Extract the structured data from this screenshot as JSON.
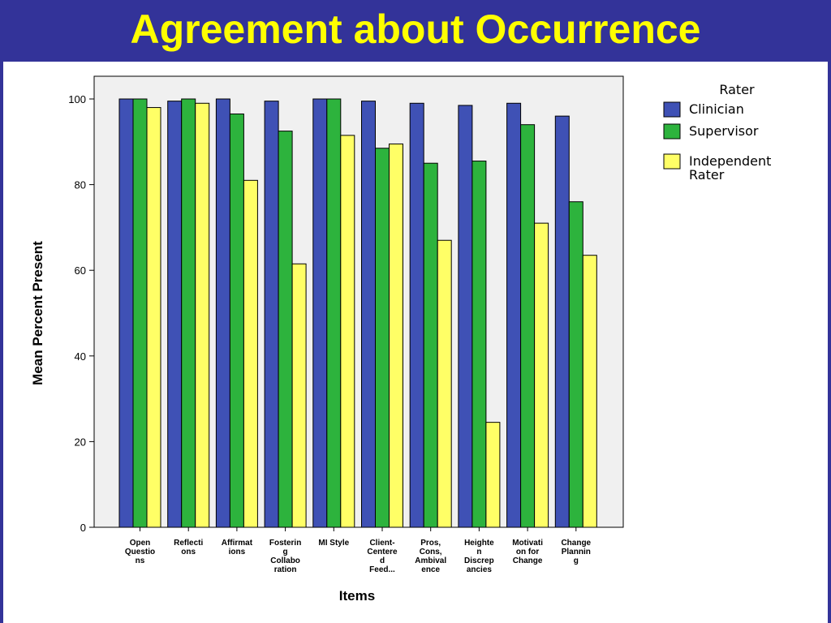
{
  "page": {
    "title": "Agreement about Occurrence"
  },
  "chart_data": {
    "type": "bar",
    "title": "",
    "xlabel": "Items",
    "ylabel": "Mean Percent Present",
    "ylim": [
      0,
      105
    ],
    "yticks": [
      0,
      20,
      40,
      60,
      80,
      100
    ],
    "grid": false,
    "legend": {
      "title": "Rater",
      "placement": "right"
    },
    "categories": [
      [
        "Open",
        "Questio",
        "ns"
      ],
      [
        "Reflecti",
        "ons"
      ],
      [
        "Affirmat",
        "ions"
      ],
      [
        "Fosterin",
        "g",
        "Collabo",
        "ration"
      ],
      [
        "MI Style"
      ],
      [
        "Client-",
        "Centere",
        "d",
        "Feed..."
      ],
      [
        "Pros,",
        "Cons,",
        "Ambival",
        "ence"
      ],
      [
        "Heighte",
        "n",
        "Discrep",
        "ancies"
      ],
      [
        "Motivati",
        "on for",
        "Change"
      ],
      [
        "Change",
        "Plannin",
        "g"
      ]
    ],
    "series": [
      {
        "name": "Clinician",
        "legend_lines": [
          "Clinician"
        ],
        "color": "#3f51b5",
        "values": [
          100,
          99.5,
          100,
          99.5,
          100,
          99.5,
          99,
          98.5,
          99,
          96
        ]
      },
      {
        "name": "Supervisor",
        "legend_lines": [
          "Supervisor"
        ],
        "color": "#2db33d",
        "values": [
          100,
          100,
          96.5,
          92.5,
          100,
          88.5,
          85,
          85.5,
          94,
          76
        ]
      },
      {
        "name": "Independent Rater",
        "legend_lines": [
          "Independent",
          "Rater"
        ],
        "color": "#ffff66",
        "values": [
          98,
          99,
          81,
          61.5,
          91.5,
          89.5,
          67,
          24.5,
          71,
          63.5
        ]
      }
    ]
  }
}
